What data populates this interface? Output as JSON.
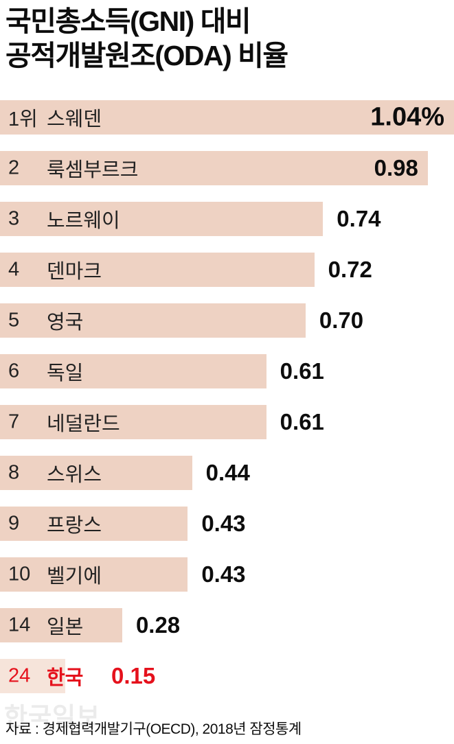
{
  "title": {
    "line1": "국민총소득(GNI) 대비",
    "line2": "공적개발원조(ODA) 비율"
  },
  "source": "자료 : 경제협력개발기구(OECD), 2018년 잠정통계",
  "watermark": "한국일보",
  "colors": {
    "bar": "#eed2c3",
    "bar_highlight": "#f6e4da",
    "accent_red": "#e5111c",
    "text": "#0d0d0d"
  },
  "chart_data": {
    "type": "bar",
    "orientation": "horizontal",
    "title": "국민총소득(GNI) 대비 공적개발원조(ODA) 비율",
    "unit": "%",
    "xlim": [
      0,
      1.04
    ],
    "grid": false,
    "legend": false,
    "rows": [
      {
        "rank": "1위",
        "country": "스웨덴",
        "value": 1.04,
        "display": "1.04%",
        "value_pos": "inside",
        "highlight": false
      },
      {
        "rank": "2",
        "country": "룩셈부르크",
        "value": 0.98,
        "display": "0.98",
        "value_pos": "inside",
        "highlight": false
      },
      {
        "rank": "3",
        "country": "노르웨이",
        "value": 0.74,
        "display": "0.74",
        "value_pos": "after-bar",
        "highlight": false
      },
      {
        "rank": "4",
        "country": "덴마크",
        "value": 0.72,
        "display": "0.72",
        "value_pos": "after-bar",
        "highlight": false
      },
      {
        "rank": "5",
        "country": "영국",
        "value": 0.7,
        "display": "0.70",
        "value_pos": "after-bar",
        "highlight": false
      },
      {
        "rank": "6",
        "country": "독일",
        "value": 0.61,
        "display": "0.61",
        "value_pos": "after-bar",
        "highlight": false
      },
      {
        "rank": "7",
        "country": "네덜란드",
        "value": 0.61,
        "display": "0.61",
        "value_pos": "after-bar",
        "highlight": false
      },
      {
        "rank": "8",
        "country": "스위스",
        "value": 0.44,
        "display": "0.44",
        "value_pos": "after-bar",
        "highlight": false
      },
      {
        "rank": "9",
        "country": "프랑스",
        "value": 0.43,
        "display": "0.43",
        "value_pos": "after-bar",
        "highlight": false
      },
      {
        "rank": "10",
        "country": "벨기에",
        "value": 0.43,
        "display": "0.43",
        "value_pos": "after-bar",
        "highlight": false
      },
      {
        "rank": "14",
        "country": "일본",
        "value": 0.28,
        "display": "0.28",
        "value_pos": "after-bar",
        "highlight": false
      },
      {
        "rank": "24",
        "country": "한국",
        "value": 0.15,
        "display": "0.15",
        "value_pos": "after-name",
        "highlight": true
      }
    ],
    "source": "자료 : 경제협력개발기구(OECD), 2018년 잠정통계"
  }
}
